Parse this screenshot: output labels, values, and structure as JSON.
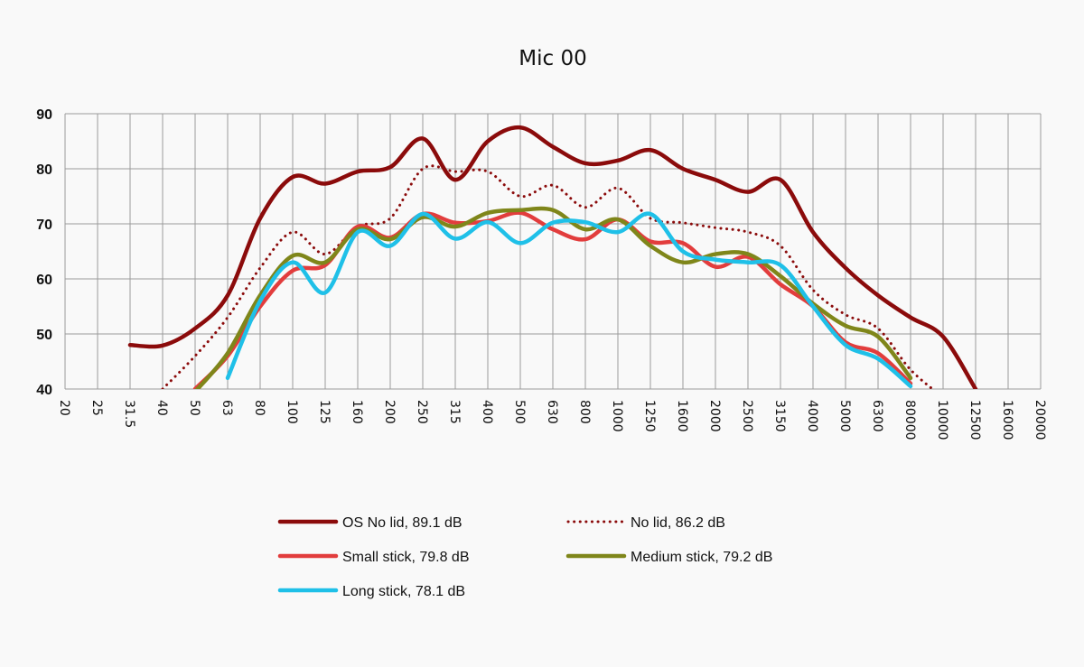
{
  "chart_data": {
    "type": "line",
    "title": "Mic 00",
    "xlabel": "",
    "ylabel": "",
    "ylim": [
      40,
      90
    ],
    "yticks": [
      40,
      50,
      60,
      70,
      80,
      90
    ],
    "grid": true,
    "legend_position": "bottom",
    "categories": [
      "20",
      "25",
      "31.5",
      "40",
      "50",
      "63",
      "80",
      "100",
      "125",
      "160",
      "200",
      "250",
      "315",
      "400",
      "500",
      "630",
      "800",
      "1000",
      "1250",
      "1600",
      "2000",
      "2500",
      "3150",
      "4000",
      "5000",
      "6300",
      "80000",
      "10000",
      "12500",
      "16000",
      "20000"
    ],
    "series": [
      {
        "name": "OS No lid, 89.1 dB",
        "color": "#8b0b0b",
        "style": "solid",
        "values": [
          null,
          null,
          48,
          47.9,
          51,
          57,
          71,
          78.5,
          77.3,
          79.5,
          80.3,
          85.5,
          78,
          85,
          87.5,
          84,
          81,
          81.5,
          83.4,
          80,
          78,
          75.8,
          78,
          68.5,
          62,
          57,
          53,
          49.5,
          40,
          null,
          null
        ]
      },
      {
        "name": "No lid, 86.2 dB",
        "color": "#8b0b0b",
        "style": "dotted",
        "values": [
          null,
          null,
          null,
          40,
          46,
          53,
          62,
          68.5,
          64.5,
          69.5,
          71,
          80,
          79.5,
          79.5,
          75,
          77,
          73,
          76.5,
          71,
          70.2,
          69.3,
          68.5,
          66,
          58,
          53.5,
          51,
          43.5,
          38.5,
          null,
          null,
          null
        ]
      },
      {
        "name": "Small stick, 79.8 dB",
        "color": "#e23d3d",
        "style": "solid",
        "values": [
          null,
          null,
          null,
          null,
          40,
          46,
          55,
          61.5,
          62.5,
          69.5,
          67.5,
          71.8,
          70.2,
          70.5,
          72,
          69,
          67.2,
          70.8,
          66.8,
          66.5,
          62.2,
          64,
          59,
          55,
          48.5,
          46.5,
          41,
          null,
          null,
          null,
          null
        ]
      },
      {
        "name": "Medium stick, 79.2 dB",
        "color": "#7f861a",
        "style": "solid",
        "values": [
          null,
          null,
          null,
          null,
          39.5,
          46.5,
          57,
          64.2,
          63,
          69,
          67.2,
          71.2,
          69.5,
          72,
          72.5,
          72.5,
          69,
          70.8,
          66,
          63,
          64.5,
          64.5,
          60.5,
          55.5,
          51.5,
          49.5,
          42,
          null,
          null,
          null,
          null
        ]
      },
      {
        "name": "Long stick, 78.1 dB",
        "color": "#1fc0e8",
        "style": "solid",
        "values": [
          null,
          null,
          null,
          null,
          null,
          42,
          56,
          63,
          57.5,
          68.5,
          66,
          71.8,
          67.3,
          70.3,
          66.5,
          70.2,
          70.3,
          68.5,
          71.8,
          65,
          63.5,
          63,
          62.5,
          55,
          48,
          45.5,
          40.5,
          null,
          null,
          null,
          null
        ]
      }
    ]
  }
}
